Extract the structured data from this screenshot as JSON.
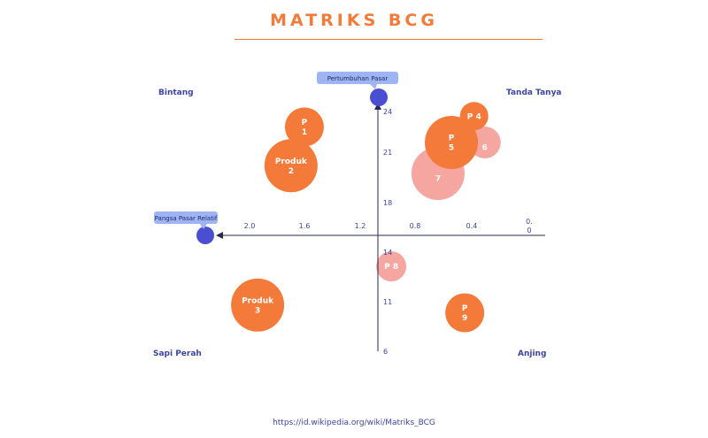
{
  "title": "MATRIKS BCG",
  "source": "https://id.wikipedia.org/wiki/Matriks_BCG",
  "quadrants": {
    "top_left": "Bintang",
    "top_right": "Tanda Tanya",
    "bottom_left": "Sapi Perah",
    "bottom_right": "Anjing"
  },
  "colors": {
    "bubble": "#f47a3a",
    "bubble_light": "#f6a6a1",
    "axis_marker": "#4a4fd1",
    "axis_label_bg": "#9fb4f2",
    "title": "#f47a3a",
    "text": "#3b44a8"
  },
  "chart_data": {
    "type": "scatter",
    "title": "MATRIKS BCG",
    "y_axis_label": "Pertumbuhan Pasar",
    "x_axis_label": "Pangsa Pasar Relatif",
    "x_ticks": [
      "2.0",
      "1.6",
      "1.2",
      "0.8",
      "0.4"
    ],
    "x_tick_end": [
      "0.",
      "0"
    ],
    "y_ticks": [
      "24",
      "21",
      "18",
      "14",
      "11",
      "6"
    ],
    "bubbles": [
      {
        "label": "P|1",
        "x": 1.55,
        "y": 22.0,
        "r": 22,
        "color": "bubble"
      },
      {
        "label": "Produk|2",
        "x": 1.65,
        "y": 19.5,
        "r": 30,
        "color": "bubble"
      },
      {
        "label": "|7",
        "x": 0.55,
        "y": 19.0,
        "r": 30,
        "color": "bubble_light"
      },
      {
        "label": "|6",
        "x": 0.2,
        "y": 21.0,
        "r": 18,
        "color": "bubble_light"
      },
      {
        "label": "P|5",
        "x": 0.45,
        "y": 21.0,
        "r": 30,
        "color": "bubble"
      },
      {
        "label": "P 4",
        "x": 0.28,
        "y": 22.7,
        "r": 16,
        "color": "bubble"
      },
      {
        "label": "P 8",
        "x": 0.9,
        "y": 13.0,
        "r": 17,
        "color": "bubble_light"
      },
      {
        "label": "Produk|3",
        "x": 1.9,
        "y": 10.5,
        "r": 30,
        "color": "bubble"
      },
      {
        "label": "P|9",
        "x": 0.35,
        "y": 10.0,
        "r": 22,
        "color": "bubble"
      }
    ]
  }
}
